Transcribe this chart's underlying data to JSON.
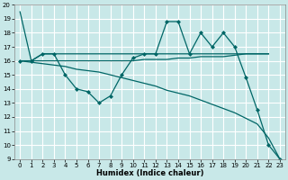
{
  "title": "",
  "xlabel": "Humidex (Indice chaleur)",
  "bg_color": "#c8e8e8",
  "grid_color": "#ffffff",
  "line_color": "#006666",
  "xlim": [
    -0.5,
    23.5
  ],
  "ylim": [
    9,
    20
  ],
  "xticks": [
    0,
    1,
    2,
    3,
    4,
    5,
    6,
    7,
    8,
    9,
    10,
    11,
    12,
    13,
    14,
    15,
    16,
    17,
    18,
    19,
    20,
    21,
    22,
    23
  ],
  "yticks": [
    9,
    10,
    11,
    12,
    13,
    14,
    15,
    16,
    17,
    18,
    19,
    20
  ],
  "series": [
    {
      "x": [
        0,
        1,
        2,
        3,
        4,
        5,
        6,
        7,
        8,
        9,
        10,
        11,
        12,
        13,
        14,
        15,
        16,
        17,
        18,
        19,
        20,
        21,
        22
      ],
      "y": [
        19.5,
        16.0,
        16.5,
        16.5,
        16.5,
        16.5,
        16.5,
        16.5,
        16.5,
        16.5,
        16.5,
        16.5,
        16.5,
        16.5,
        16.5,
        16.5,
        16.5,
        16.5,
        16.5,
        16.5,
        16.5,
        16.5,
        16.5
      ],
      "marker": null,
      "linewidth": 0.9
    },
    {
      "x": [
        0,
        1,
        2,
        3,
        4,
        5,
        6,
        7,
        8,
        9,
        10,
        11,
        12,
        13,
        14,
        15,
        16,
        17,
        18,
        19,
        20,
        21,
        22
      ],
      "y": [
        16.0,
        16.0,
        16.0,
        16.0,
        16.0,
        16.0,
        16.0,
        16.0,
        16.0,
        16.0,
        16.0,
        16.1,
        16.1,
        16.1,
        16.2,
        16.2,
        16.3,
        16.3,
        16.3,
        16.4,
        16.5,
        16.5,
        16.5
      ],
      "marker": null,
      "linewidth": 0.9
    },
    {
      "x": [
        0,
        1,
        2,
        3,
        4,
        5,
        6,
        7,
        8,
        9,
        10,
        11,
        12,
        13,
        14,
        15,
        16,
        17,
        18,
        19,
        20,
        21,
        22,
        23
      ],
      "y": [
        16.0,
        16.0,
        16.5,
        16.5,
        15.0,
        14.0,
        13.8,
        13.0,
        13.5,
        15.0,
        16.2,
        16.5,
        16.5,
        18.8,
        18.8,
        16.5,
        18.0,
        17.0,
        18.0,
        17.0,
        14.8,
        12.5,
        10.0,
        9.0
      ],
      "marker": "D",
      "markersize": 2.0,
      "linewidth": 0.9
    },
    {
      "x": [
        0,
        1,
        2,
        3,
        4,
        5,
        6,
        7,
        8,
        9,
        10,
        11,
        12,
        13,
        14,
        15,
        16,
        17,
        18,
        19,
        20,
        21,
        22,
        23
      ],
      "y": [
        16.0,
        15.9,
        15.8,
        15.7,
        15.6,
        15.4,
        15.3,
        15.2,
        15.0,
        14.8,
        14.6,
        14.4,
        14.2,
        13.9,
        13.7,
        13.5,
        13.2,
        12.9,
        12.6,
        12.3,
        11.9,
        11.5,
        10.5,
        9.0
      ],
      "marker": null,
      "linewidth": 0.9
    }
  ],
  "xlabel_fontsize": 6.0,
  "tick_fontsize": 5.0
}
